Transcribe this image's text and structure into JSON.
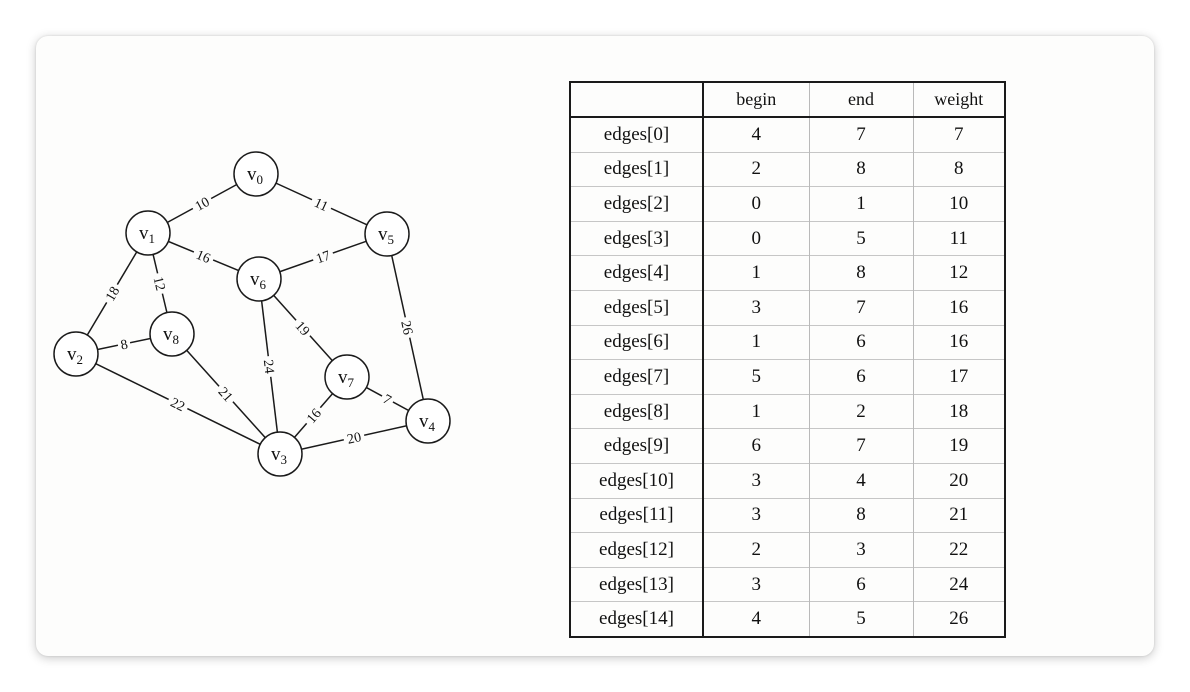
{
  "graph": {
    "vertices": [
      {
        "id": 0,
        "letter": "v",
        "sub": "0"
      },
      {
        "id": 1,
        "letter": "v",
        "sub": "1"
      },
      {
        "id": 2,
        "letter": "v",
        "sub": "2"
      },
      {
        "id": 3,
        "letter": "v",
        "sub": "3"
      },
      {
        "id": 4,
        "letter": "v",
        "sub": "4"
      },
      {
        "id": 5,
        "letter": "v",
        "sub": "5"
      },
      {
        "id": 6,
        "letter": "v",
        "sub": "6"
      },
      {
        "id": 7,
        "letter": "v",
        "sub": "7"
      },
      {
        "id": 8,
        "letter": "v",
        "sub": "8"
      }
    ],
    "edges": [
      {
        "from": 0,
        "to": 1,
        "weight": "10"
      },
      {
        "from": 0,
        "to": 5,
        "weight": "11"
      },
      {
        "from": 1,
        "to": 6,
        "weight": "16"
      },
      {
        "from": 6,
        "to": 5,
        "weight": "17"
      },
      {
        "from": 1,
        "to": 8,
        "weight": "12"
      },
      {
        "from": 1,
        "to": 2,
        "weight": "18"
      },
      {
        "from": 2,
        "to": 8,
        "weight": "8"
      },
      {
        "from": 8,
        "to": 3,
        "weight": "21"
      },
      {
        "from": 2,
        "to": 3,
        "weight": "22"
      },
      {
        "from": 6,
        "to": 3,
        "weight": "24"
      },
      {
        "from": 6,
        "to": 7,
        "weight": "19"
      },
      {
        "from": 7,
        "to": 3,
        "weight": "16"
      },
      {
        "from": 7,
        "to": 4,
        "weight": "7"
      },
      {
        "from": 3,
        "to": 4,
        "weight": "20"
      },
      {
        "from": 5,
        "to": 4,
        "weight": "26"
      }
    ]
  },
  "table": {
    "columns": [
      "",
      "begin",
      "end",
      "weight"
    ],
    "rows": [
      {
        "label": "edges[0]",
        "begin": "4",
        "end": "7",
        "weight": "7"
      },
      {
        "label": "edges[1]",
        "begin": "2",
        "end": "8",
        "weight": "8"
      },
      {
        "label": "edges[2]",
        "begin": "0",
        "end": "1",
        "weight": "10"
      },
      {
        "label": "edges[3]",
        "begin": "0",
        "end": "5",
        "weight": "11"
      },
      {
        "label": "edges[4]",
        "begin": "1",
        "end": "8",
        "weight": "12"
      },
      {
        "label": "edges[5]",
        "begin": "3",
        "end": "7",
        "weight": "16"
      },
      {
        "label": "edges[6]",
        "begin": "1",
        "end": "6",
        "weight": "16"
      },
      {
        "label": "edges[7]",
        "begin": "5",
        "end": "6",
        "weight": "17"
      },
      {
        "label": "edges[8]",
        "begin": "1",
        "end": "2",
        "weight": "18"
      },
      {
        "label": "edges[9]",
        "begin": "6",
        "end": "7",
        "weight": "19"
      },
      {
        "label": "edges[10]",
        "begin": "3",
        "end": "4",
        "weight": "20"
      },
      {
        "label": "edges[11]",
        "begin": "3",
        "end": "8",
        "weight": "21"
      },
      {
        "label": "edges[12]",
        "begin": "2",
        "end": "3",
        "weight": "22"
      },
      {
        "label": "edges[13]",
        "begin": "3",
        "end": "6",
        "weight": "24"
      },
      {
        "label": "edges[14]",
        "begin": "4",
        "end": "5",
        "weight": "26"
      }
    ]
  }
}
